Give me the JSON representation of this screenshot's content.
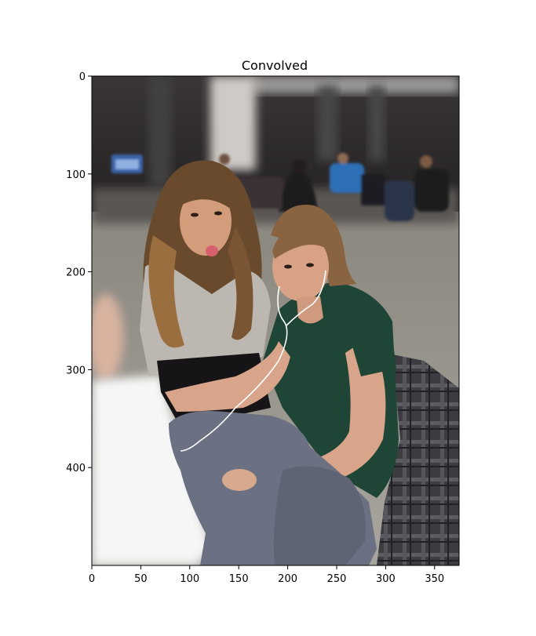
{
  "chart_data": {
    "type": "image",
    "title": "Convolved",
    "xlim": [
      0,
      375
    ],
    "ylim": [
      500,
      0
    ],
    "x_ticks": [
      0,
      50,
      100,
      150,
      200,
      250,
      300,
      350
    ],
    "y_ticks": [
      0,
      100,
      200,
      300,
      400
    ],
    "grid": false,
    "legend": "none",
    "image_subject": "two seated people in a blurred room, one sticking out her tongue, one wearing earphones"
  },
  "colors": {
    "background": "#ffffff",
    "axes_frame": "#000000",
    "wall_dark": "#2e2b2c",
    "floor": "#8f8c84",
    "hair_brown": "#6b4a2c",
    "skin": "#d49c7c",
    "green_shirt": "#1f4536",
    "gray_sweater": "#bdb9b2",
    "sweatpants": "#6b7182",
    "paper": "#f7f7f7",
    "plaid_jacket": "#3a3a3e"
  }
}
